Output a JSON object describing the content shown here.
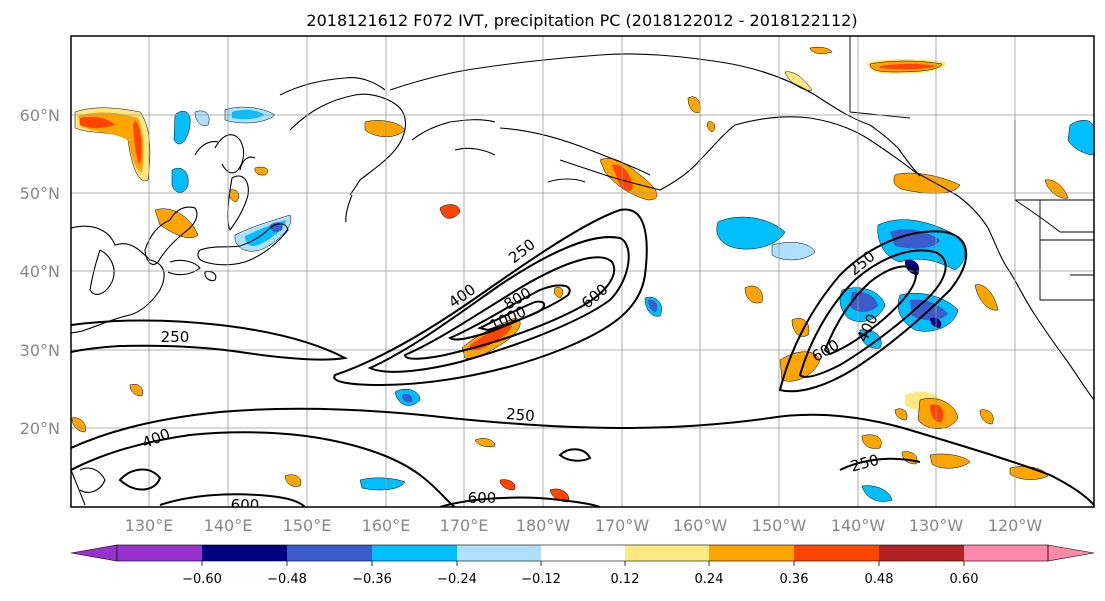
{
  "figure": {
    "title": "2018121612 F072 IVT, precipitation PC (2018122012 - 2018122112)"
  },
  "map": {
    "lat_labels": [
      "60°N",
      "50°N",
      "40°N",
      "30°N",
      "20°N"
    ],
    "lon_labels": [
      "130°E",
      "140°E",
      "150°E",
      "160°E",
      "170°E",
      "180°W",
      "170°W",
      "160°W",
      "150°W",
      "140°W",
      "130°W",
      "120°W"
    ],
    "contour_labels": [
      "250",
      "400",
      "600",
      "800",
      "1000",
      "250",
      "400",
      "600",
      "250",
      "250",
      "400",
      "600",
      "600",
      "250"
    ],
    "grid": true
  },
  "colorbar": {
    "ticks": [
      "−0.60",
      "−0.48",
      "−0.36",
      "−0.24",
      "−0.12",
      "0.12",
      "0.24",
      "0.36",
      "0.48",
      "0.60"
    ],
    "colors": [
      "#9932cc",
      "#000080",
      "#3a5ccc",
      "#00bfff",
      "#b0e0ff",
      "#ffffff",
      "#ffe880",
      "#ffa500",
      "#ff4500",
      "#b22222",
      "#ff88aa"
    ]
  }
}
